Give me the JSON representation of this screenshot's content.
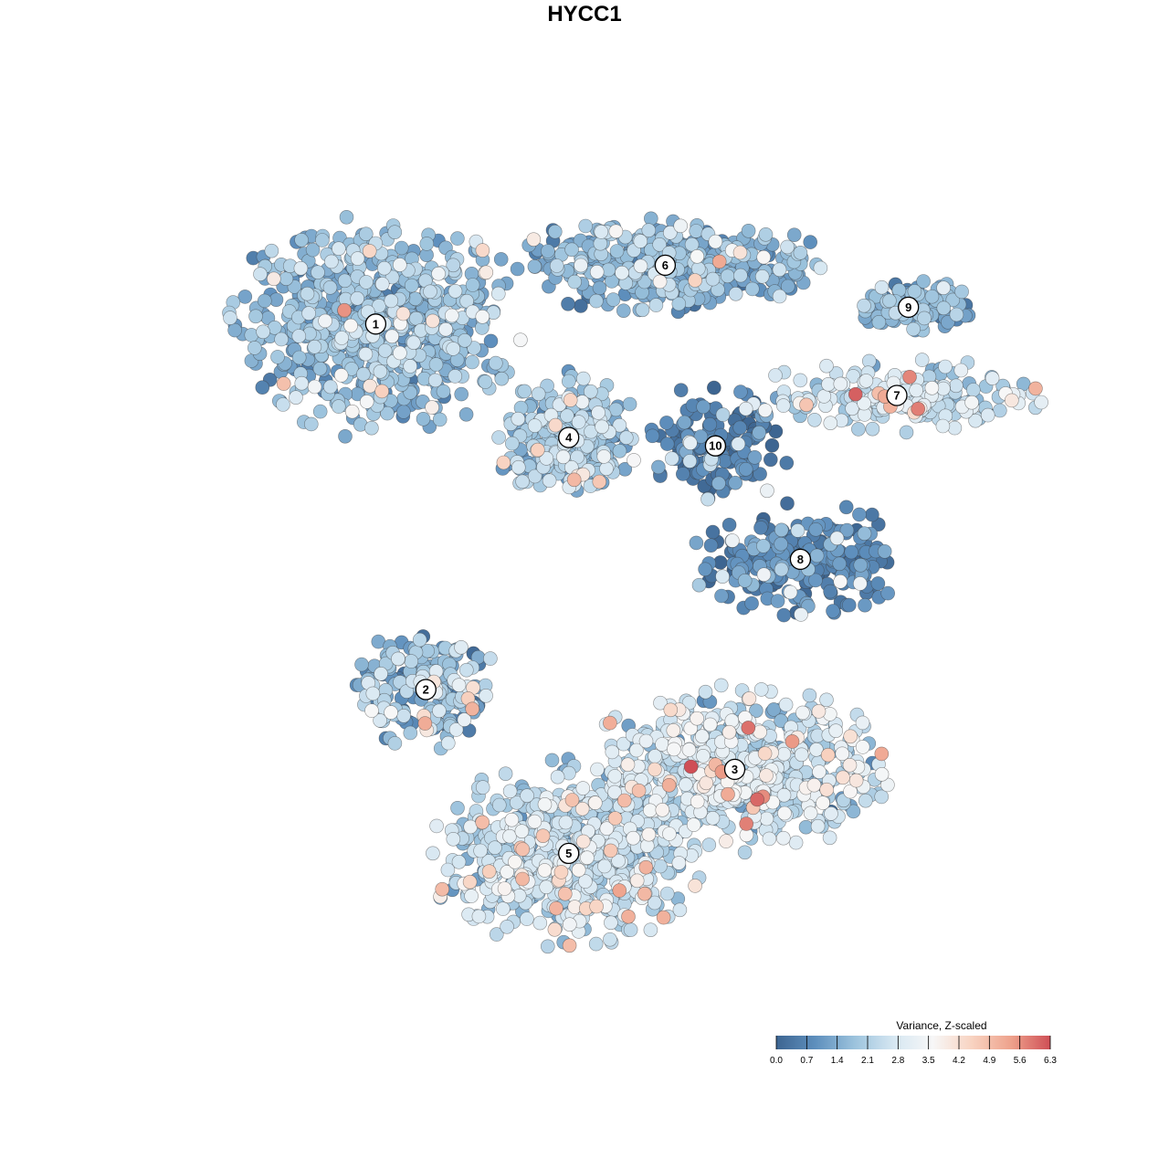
{
  "title": "HYCC1",
  "chart_data": {
    "type": "scatter",
    "title": "HYCC1",
    "xlabel": "",
    "ylabel": "",
    "grid": false,
    "legend_position": "bottom-right",
    "color_scale": {
      "title": "Variance, Z-scaled",
      "min": 0.0,
      "max": 6.3,
      "ticks": [
        "0.0",
        "0.7",
        "1.4",
        "2.1",
        "2.8",
        "3.5",
        "4.2",
        "4.9",
        "5.6",
        "6.3"
      ],
      "colors": [
        "#3d6591",
        "#5e8fbd",
        "#9cc3dd",
        "#d6e7f2",
        "#f7f7f7",
        "#f8d3c1",
        "#eea28c",
        "#cf4f56"
      ]
    },
    "clusters": [
      {
        "label": "1",
        "cx": -6.0,
        "cy": 6.2,
        "rx": 3.4,
        "ry": 2.4,
        "mean": 1.6,
        "sd": 0.55,
        "n": 650
      },
      {
        "label": "6",
        "cx": 1.5,
        "cy": 7.6,
        "rx": 3.8,
        "ry": 1.0,
        "mean": 1.4,
        "sd": 0.5,
        "n": 420
      },
      {
        "label": "9",
        "cx": 7.8,
        "cy": 6.6,
        "rx": 1.5,
        "ry": 0.6,
        "mean": 1.5,
        "sd": 0.45,
        "n": 110
      },
      {
        "label": "7",
        "cx": 7.5,
        "cy": 4.5,
        "rx": 3.4,
        "ry": 0.8,
        "mean": 2.4,
        "sd": 0.6,
        "n": 220
      },
      {
        "label": "4",
        "cx": -1.0,
        "cy": 3.5,
        "rx": 1.7,
        "ry": 1.4,
        "mean": 1.9,
        "sd": 0.55,
        "n": 260
      },
      {
        "label": "10",
        "cx": 2.8,
        "cy": 3.3,
        "rx": 1.8,
        "ry": 1.4,
        "mean": 0.5,
        "sd": 0.4,
        "n": 150
      },
      {
        "label": "8",
        "cx": 5.0,
        "cy": 0.6,
        "rx": 2.6,
        "ry": 1.2,
        "mean": 0.7,
        "sd": 0.5,
        "n": 230
      },
      {
        "label": "2",
        "cx": -4.7,
        "cy": -2.5,
        "rx": 1.8,
        "ry": 1.3,
        "mean": 1.7,
        "sd": 0.8,
        "n": 200
      },
      {
        "label": "3",
        "cx": 3.3,
        "cy": -4.4,
        "rx": 3.6,
        "ry": 1.8,
        "mean": 2.5,
        "sd": 0.7,
        "n": 620
      },
      {
        "label": "5",
        "cx": -1.0,
        "cy": -6.4,
        "rx": 3.3,
        "ry": 2.0,
        "mean": 2.3,
        "sd": 0.6,
        "n": 650
      }
    ]
  }
}
